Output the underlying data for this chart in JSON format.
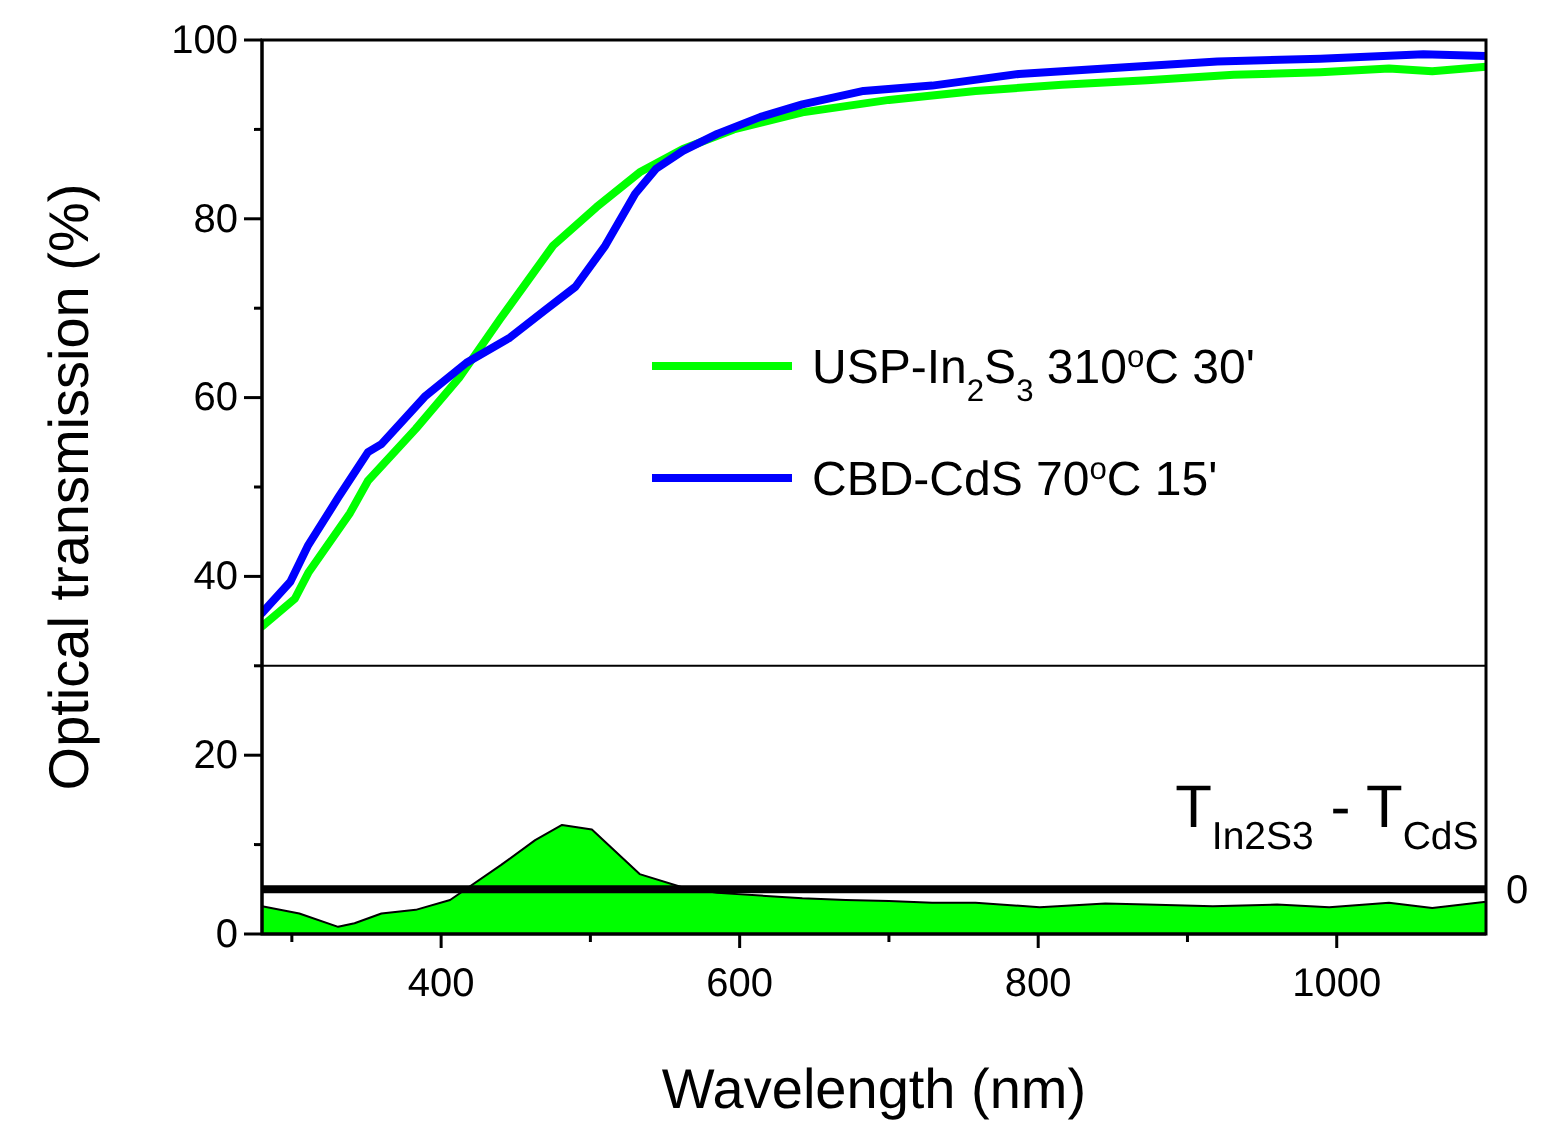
{
  "chart_data": {
    "type": "line",
    "xlabel": "Wavelength (nm)",
    "ylabel": "Optical transmission (%)",
    "xlim": [
      280,
      1100
    ],
    "xticks": [
      {
        "value": 300,
        "label": null
      },
      400,
      {
        "value": 500,
        "label": null
      },
      600,
      {
        "value": 700,
        "label": null
      },
      800,
      {
        "value": 900,
        "label": null
      },
      1000
    ],
    "ylim": [
      0,
      100
    ],
    "yticks": [
      0,
      {
        "value": 10,
        "label": null
      },
      20,
      {
        "value": 30,
        "label": null
      },
      40,
      {
        "value": 50,
        "label": null
      },
      60,
      {
        "value": 70,
        "label": null
      },
      80,
      {
        "value": 90,
        "label": null
      },
      100
    ],
    "legend": "right",
    "grid": false,
    "ref_lines": [
      {
        "axis": "y",
        "value": 30,
        "color": "#000000"
      },
      {
        "axis": "y",
        "value": 5,
        "color": "#000000"
      }
    ],
    "annotations": [
      {
        "text": "0",
        "x": 1100,
        "y": 5
      }
    ],
    "series": [
      {
        "name": "USP-In$_{2}$S$_{3}$ 310$^{o}$C 30'",
        "color": "#00ff00",
        "x": [
          280,
          302,
          311,
          339,
          351,
          383,
          412,
          440,
          475,
          504,
          533,
          562,
          596,
          642,
          700,
          758,
          816,
          873,
          931,
          989,
          1035,
          1064,
          1100
        ],
        "values": [
          34.4,
          37.5,
          40.4,
          47.1,
          50.7,
          56.5,
          62.2,
          68.9,
          77.0,
          81.3,
          85.2,
          87.8,
          90.0,
          91.9,
          93.3,
          94.3,
          95.0,
          95.5,
          96.1,
          96.4,
          96.8,
          96.5,
          97.0
        ]
      },
      {
        "name": "CBD-CdS 70$^{o}$C 15'",
        "color": "#0000ff",
        "x": [
          280,
          299,
          311,
          331,
          351,
          360,
          389,
          417,
          446,
          469,
          490,
          510,
          530,
          544,
          562,
          585,
          614,
          642,
          683,
          729,
          787,
          845,
          920,
          989,
          1058,
          1100
        ],
        "values": [
          35.9,
          39.4,
          43.5,
          48.8,
          53.9,
          54.8,
          60.1,
          63.9,
          66.7,
          69.7,
          72.4,
          77.0,
          82.8,
          85.6,
          87.6,
          89.5,
          91.4,
          92.8,
          94.3,
          94.9,
          96.2,
          96.8,
          97.6,
          97.9,
          98.4,
          98.2
        ]
      },
      {
        "name": "T$_{In2S3}$ - T$_{CdS}$",
        "type": "area",
        "color": "#00ff00",
        "x": [
          280,
          305,
          331,
          342,
          360,
          383,
          406,
          440,
          463,
          481,
          501,
          533,
          562,
          585,
          614,
          642,
          671,
          700,
          729,
          758,
          801,
          845,
          873,
          917,
          960,
          995,
          1035,
          1064,
          1100
        ],
        "values": [
          3.1,
          2.3,
          0.8,
          1.2,
          2.3,
          2.7,
          3.8,
          7.7,
          10.5,
          12.2,
          11.7,
          6.7,
          5.2,
          4.6,
          4.3,
          4.0,
          3.8,
          3.7,
          3.5,
          3.5,
          3.0,
          3.4,
          3.3,
          3.1,
          3.3,
          3.0,
          3.5,
          2.9,
          3.6
        ]
      }
    ]
  }
}
